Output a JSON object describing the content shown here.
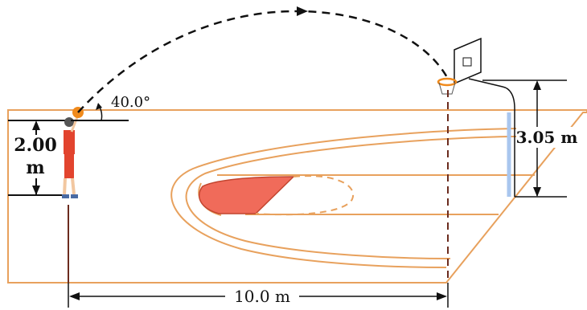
{
  "figure": {
    "angle_label": "40.0°",
    "height_label_value": "2.00",
    "height_label_unit": "m",
    "hoop_height_label": "3.05 m",
    "distance_label": "10.0 m"
  },
  "colors": {
    "court_line": "#e8a15d",
    "key_fill": "#f06b5a",
    "dimension_line": "#111111",
    "player_shirt": "#e2442e",
    "ball": "#f08a1c",
    "pole": "#a9c6ee"
  }
}
